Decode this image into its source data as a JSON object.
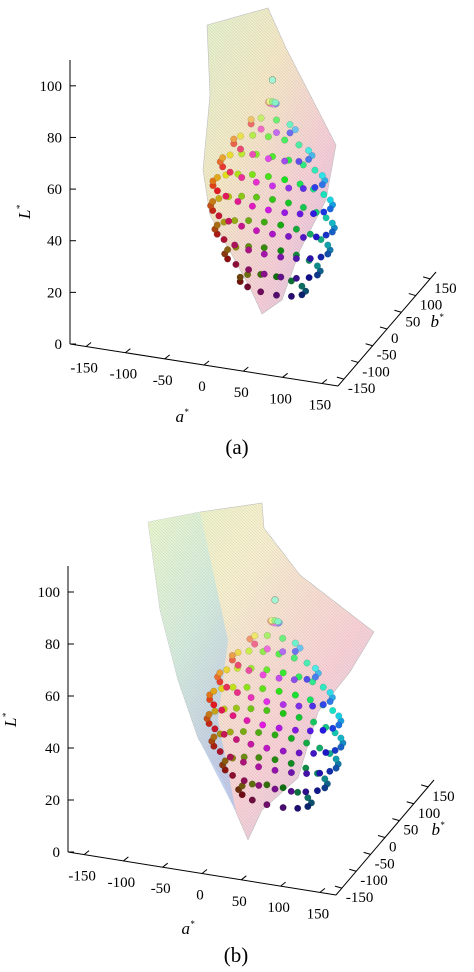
{
  "panels": [
    {
      "caption": "(a)",
      "ylabel": "L",
      "ylabel_sup": "*",
      "xlabel": "a",
      "xlabel_sup": "*",
      "zlabel": "b",
      "zlabel_sup": "*",
      "l_ticks": [
        "0",
        "20",
        "40",
        "60",
        "80",
        "100"
      ],
      "a_ticks": [
        "-150",
        "-100",
        "-50",
        "0",
        "50",
        "100",
        "150"
      ],
      "b_ticks": [
        "150",
        "100",
        "50",
        "0",
        "-50",
        "-100",
        "-150"
      ]
    },
    {
      "caption": "(b)",
      "ylabel": "L",
      "ylabel_sup": "*",
      "xlabel": "a",
      "xlabel_sup": "*",
      "zlabel": "b",
      "zlabel_sup": "*",
      "l_ticks": [
        "0",
        "20",
        "40",
        "60",
        "80",
        "100"
      ],
      "a_ticks": [
        "-150",
        "-100",
        "-50",
        "0",
        "50",
        "100",
        "150"
      ],
      "b_ticks": [
        "150",
        "100",
        "50",
        "0",
        "-50",
        "-100",
        "-150"
      ]
    }
  ],
  "chart_data": [
    {
      "type": "scatter",
      "title": "",
      "xlabel": "a*",
      "ylabel": "b*",
      "zlabel": "L*",
      "xlim": [
        -150,
        150
      ],
      "ylim": [
        -150,
        150
      ],
      "zlim": [
        0,
        110
      ],
      "L_values": [
        10,
        20,
        30,
        40,
        50,
        60,
        70,
        80,
        90,
        100
      ],
      "series": [
        {
          "name": "",
          "kind": "points",
          "description": "color samples"
        },
        {
          "name": "",
          "kind": "surface",
          "description": "gamut boundary mesh"
        }
      ],
      "grid": false
    },
    {
      "type": "scatter",
      "title": "",
      "xlabel": "a*",
      "ylabel": "b*",
      "zlabel": "L*",
      "xlim": [
        -150,
        150
      ],
      "ylim": [
        -150,
        150
      ],
      "zlim": [
        0,
        110
      ],
      "L_values": [
        10,
        20,
        30,
        40,
        50,
        60,
        70,
        80,
        90,
        100
      ],
      "series": [
        {
          "name": "",
          "kind": "points",
          "description": "color samples"
        },
        {
          "name": "",
          "kind": "surface",
          "description": "gamut boundary mesh"
        }
      ],
      "grid": false
    }
  ]
}
